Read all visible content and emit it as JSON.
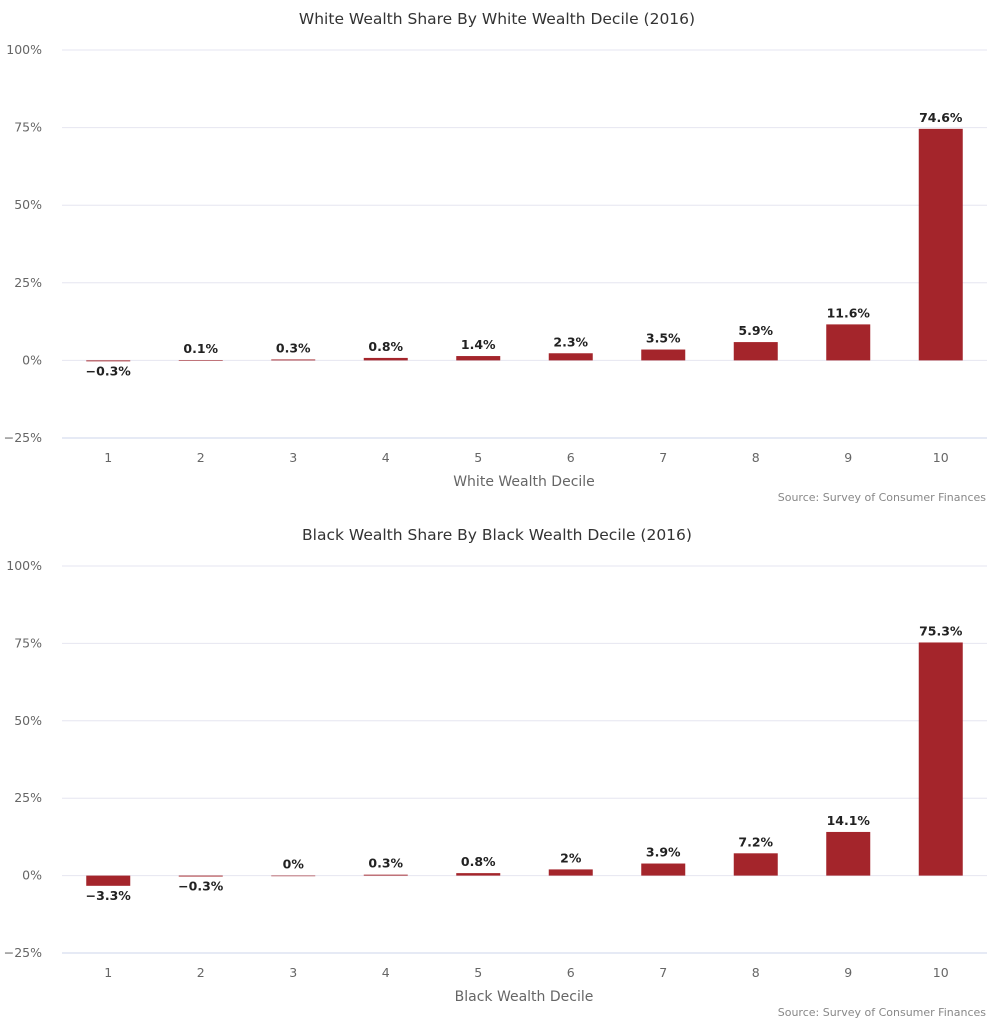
{
  "colors": {
    "bar": "#a4252b",
    "grid": "#e6e6f0",
    "baseline": "#ccd6eb"
  },
  "chart_data": [
    {
      "type": "bar",
      "title": "White Wealth Share By White Wealth Decile (2016)",
      "xlabel": "White Wealth Decile",
      "ylabel": "",
      "categories": [
        "1",
        "2",
        "3",
        "4",
        "5",
        "6",
        "7",
        "8",
        "9",
        "10"
      ],
      "values": [
        -0.3,
        0.1,
        0.3,
        0.8,
        1.4,
        2.3,
        3.5,
        5.9,
        11.6,
        74.6
      ],
      "data_labels": [
        "−0.3%",
        "0.1%",
        "0.3%",
        "0.8%",
        "1.4%",
        "2.3%",
        "3.5%",
        "5.9%",
        "11.6%",
        "74.6%"
      ],
      "ylim": [
        -25,
        100
      ],
      "yticks": [
        -25,
        0,
        25,
        50,
        75,
        100
      ],
      "ytick_labels": [
        "−25%",
        "0%",
        "25%",
        "50%",
        "75%",
        "100%"
      ],
      "grid": true,
      "source": "Source: Survey of Consumer Finances"
    },
    {
      "type": "bar",
      "title": "Black Wealth Share By Black Wealth Decile (2016)",
      "xlabel": "Black Wealth Decile",
      "ylabel": "",
      "categories": [
        "1",
        "2",
        "3",
        "4",
        "5",
        "6",
        "7",
        "8",
        "9",
        "10"
      ],
      "values": [
        -3.3,
        -0.3,
        0,
        0.3,
        0.8,
        2,
        3.9,
        7.2,
        14.1,
        75.3
      ],
      "data_labels": [
        "−3.3%",
        "−0.3%",
        "0%",
        "0.3%",
        "0.8%",
        "2%",
        "3.9%",
        "7.2%",
        "14.1%",
        "75.3%"
      ],
      "ylim": [
        -25,
        100
      ],
      "yticks": [
        -25,
        0,
        25,
        50,
        75,
        100
      ],
      "ytick_labels": [
        "−25%",
        "0%",
        "25%",
        "50%",
        "75%",
        "100%"
      ],
      "grid": true,
      "source": "Source: Survey of Consumer Finances"
    }
  ]
}
